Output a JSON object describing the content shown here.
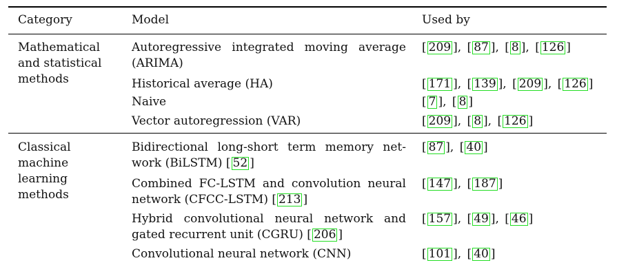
{
  "headers": {
    "category": "Category",
    "model": "Model",
    "used_by": "Used by"
  },
  "groups": [
    {
      "category_lines": [
        "Mathematical",
        "and statistical",
        "methods"
      ],
      "rows": [
        {
          "model_lines": [
            "Autoregressive integrated moving average",
            "(ARIMA)"
          ],
          "model_ref": null,
          "refs": [
            "209",
            "87",
            "8",
            "126"
          ]
        },
        {
          "model_lines": [
            "Historical average (HA)"
          ],
          "model_ref": null,
          "refs": [
            "171",
            "139",
            "209",
            "126"
          ]
        },
        {
          "model_lines": [
            "Naive"
          ],
          "model_ref": null,
          "refs": [
            "7",
            "8"
          ]
        },
        {
          "model_lines": [
            "Vector autoregression (VAR)"
          ],
          "model_ref": null,
          "refs": [
            "209",
            "8",
            "126"
          ]
        }
      ]
    },
    {
      "category_lines": [
        "Classical",
        "machine",
        "learning",
        "methods"
      ],
      "rows": [
        {
          "model_lines": [
            "Bidirectional long-short term memory net-",
            "work (BiLSTM)"
          ],
          "model_ref": "52",
          "refs": [
            "87",
            "40"
          ]
        },
        {
          "model_lines": [
            "Combined FC-LSTM and convolution neural",
            "network (CFCC-LSTM)"
          ],
          "model_ref": "213",
          "refs": [
            "147",
            "187"
          ]
        },
        {
          "model_lines": [
            "Hybrid convolutional neural network and",
            "gated recurrent unit (CGRU)"
          ],
          "model_ref": "206",
          "refs": [
            "157",
            "49",
            "46"
          ]
        },
        {
          "model_lines": [
            "Convolutional neural network (CNN)"
          ],
          "model_ref": null,
          "refs": [
            "101",
            "40"
          ]
        }
      ]
    }
  ]
}
